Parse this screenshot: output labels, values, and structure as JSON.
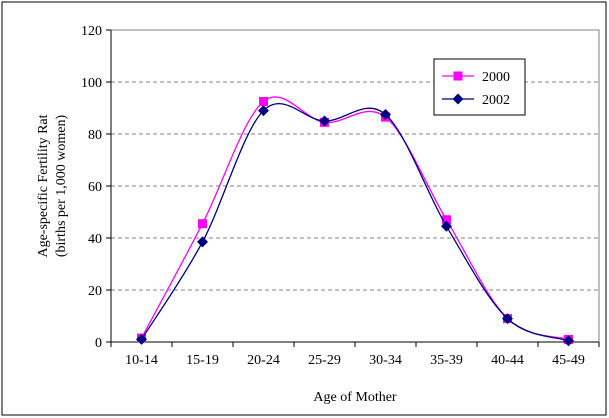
{
  "chart_data": {
    "type": "line",
    "categories": [
      "10-14",
      "15-19",
      "20-24",
      "25-29",
      "30-34",
      "35-39",
      "40-44",
      "45-49"
    ],
    "series": [
      {
        "name": "2000",
        "color": "#ff00ff",
        "marker": "square",
        "values": [
          1.5,
          45.5,
          92.5,
          84.5,
          86.5,
          47.0,
          9.0,
          1.0
        ]
      },
      {
        "name": "2002",
        "color": "#000080",
        "marker": "diamond",
        "values": [
          1.0,
          38.5,
          89.0,
          85.0,
          87.5,
          44.5,
          9.0,
          0.5
        ]
      }
    ],
    "title": "",
    "xlabel": "Age of Mother",
    "ylabel_line1": "Age-specific Fertility Rat",
    "ylabel_line2": "(births per 1,000 women)",
    "ylim": [
      0,
      120
    ],
    "yticks": [
      0,
      20,
      40,
      60,
      80,
      100,
      120
    ],
    "grid": true,
    "legend_position": "top-right"
  }
}
